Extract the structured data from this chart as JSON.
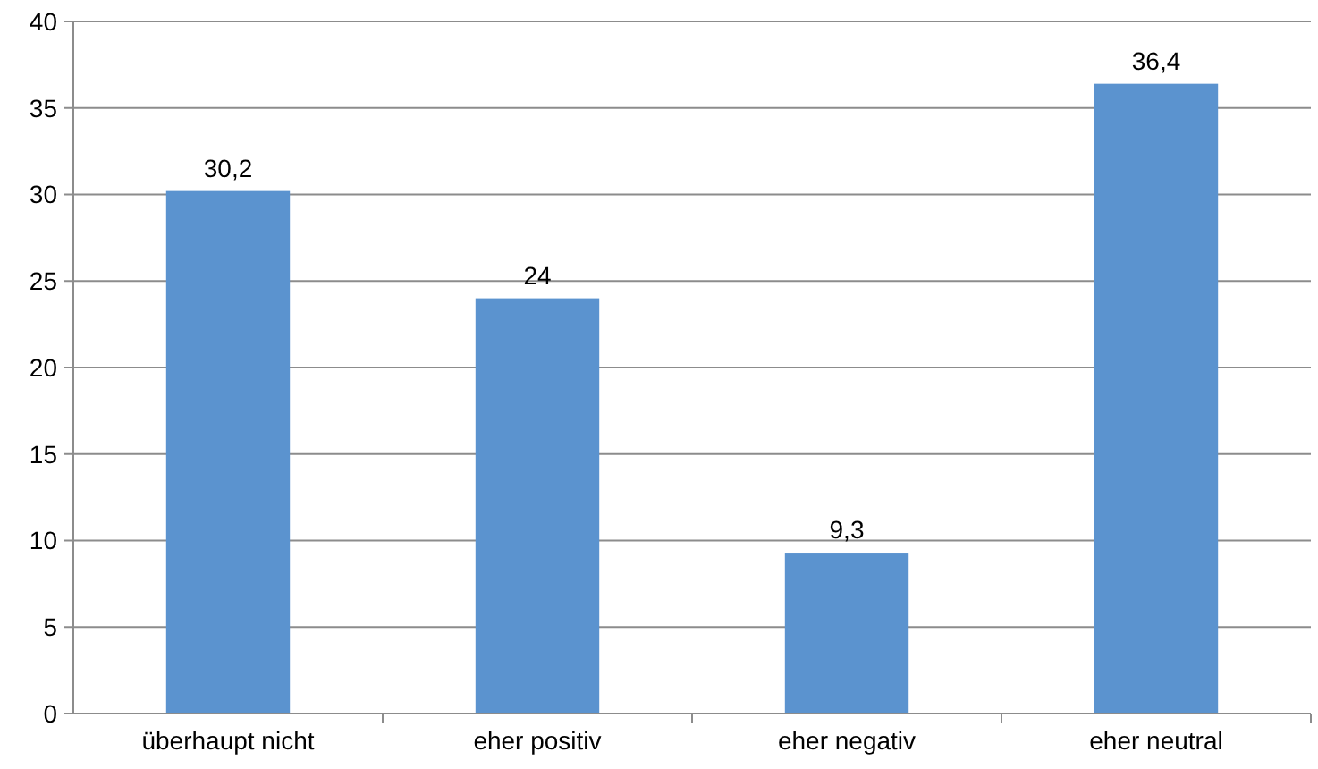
{
  "chart_data": {
    "type": "bar",
    "categories": [
      "überhaupt nicht",
      "eher positiv",
      "eher negativ",
      "eher neutral"
    ],
    "values": [
      30.2,
      24,
      9.3,
      36.4
    ],
    "value_labels": [
      "30,2",
      "24",
      "9,3",
      "36,4"
    ],
    "color": "#5b93cf",
    "ylim": [
      0,
      40
    ],
    "yticks": [
      0,
      5,
      10,
      15,
      20,
      25,
      30,
      35,
      40
    ],
    "grid": "y"
  }
}
